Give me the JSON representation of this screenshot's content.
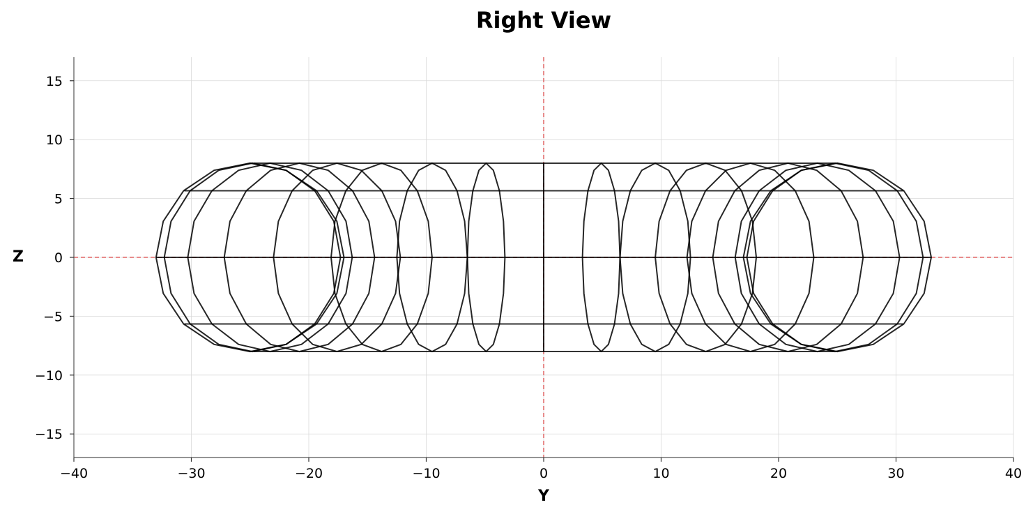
{
  "chart_data": {
    "type": "line",
    "title": "Right View",
    "xlabel": "Y",
    "ylabel": "Z",
    "xlim": [
      -40,
      40
    ],
    "ylim": [
      -17,
      17
    ],
    "xticks": [
      -40,
      -30,
      -20,
      -10,
      0,
      10,
      20,
      30,
      40
    ],
    "yticks": [
      -15,
      -10,
      -5,
      0,
      5,
      10,
      15
    ],
    "xtick_labels": [
      "−40",
      "−30",
      "−20",
      "−10",
      "0",
      "10",
      "20",
      "30",
      "40"
    ],
    "ytick_labels": [
      "−15",
      "−10",
      "−5",
      "0",
      "5",
      "10",
      "15"
    ],
    "grid": true,
    "reference_lines": {
      "x": 0,
      "y": 0,
      "color": "#e06666",
      "style": "dashed"
    },
    "line_color": "#000000",
    "cross_sections": [
      {
        "center_y": 0.0,
        "half_width": 0.0,
        "half_height": 8.0
      },
      {
        "center_y": -4.9,
        "half_width": 1.6,
        "half_height": 8.0
      },
      {
        "center_y": 4.9,
        "half_width": 1.6,
        "half_height": 8.0
      },
      {
        "center_y": -9.5,
        "half_width": 3.0,
        "half_height": 8.0
      },
      {
        "center_y": 9.5,
        "half_width": 3.0,
        "half_height": 8.0
      },
      {
        "center_y": -13.8,
        "half_width": 4.3,
        "half_height": 8.0
      },
      {
        "center_y": 13.8,
        "half_width": 4.3,
        "half_height": 8.0
      },
      {
        "center_y": -17.6,
        "half_width": 5.4,
        "half_height": 8.0
      },
      {
        "center_y": 17.6,
        "half_width": 5.4,
        "half_height": 8.0
      },
      {
        "center_y": -20.8,
        "half_width": 6.4,
        "half_height": 8.0
      },
      {
        "center_y": 20.8,
        "half_width": 6.4,
        "half_height": 8.0
      },
      {
        "center_y": -23.3,
        "half_width": 7.0,
        "half_height": 8.0
      },
      {
        "center_y": 23.3,
        "half_width": 7.0,
        "half_height": 8.0
      },
      {
        "center_y": -24.8,
        "half_width": 7.5,
        "half_height": 8.0
      },
      {
        "center_y": 24.8,
        "half_width": 7.5,
        "half_height": 8.0
      },
      {
        "center_y": -25.0,
        "half_width": 8.0,
        "half_height": 8.0
      },
      {
        "center_y": 25.0,
        "half_width": 8.0,
        "half_height": 8.0
      }
    ],
    "longitudinal_lines": [
      {
        "z": 8.0,
        "y_range": [
          -24.7,
          24.7
        ]
      },
      {
        "z": 5.66,
        "y_range": [
          -30.6,
          30.6
        ]
      },
      {
        "z": 0.0,
        "y_range": [
          -33.0,
          33.0
        ]
      },
      {
        "z": -5.66,
        "y_range": [
          -30.6,
          30.6
        ]
      },
      {
        "z": -8.0,
        "y_range": [
          -24.7,
          24.7
        ]
      }
    ]
  }
}
